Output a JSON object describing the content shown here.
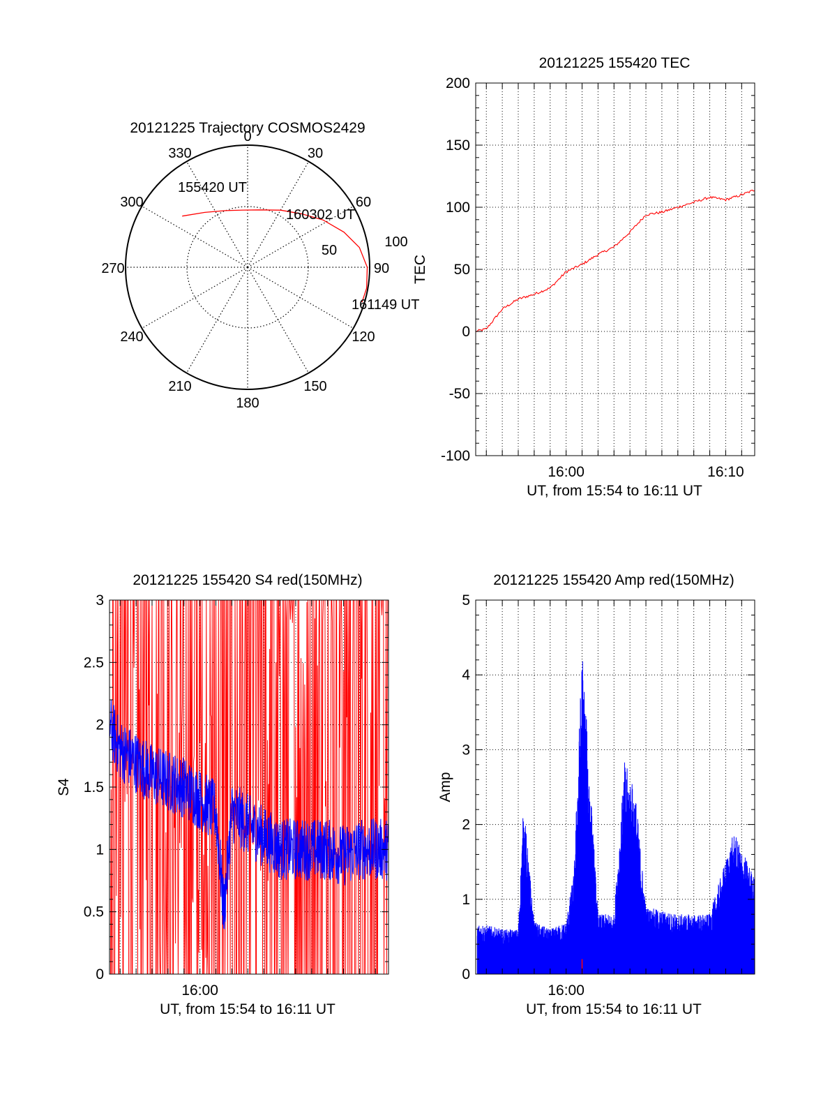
{
  "chart_data": [
    {
      "type": "polar",
      "title": "20121225 Trajectory COSMOS2429",
      "azimuth_labels": [
        "0",
        "30",
        "60",
        "90",
        "120",
        "150",
        "180",
        "210",
        "240",
        "270",
        "300",
        "330"
      ],
      "ring_labels": [
        "100",
        "50"
      ],
      "trajectory": {
        "color": "#ff0000",
        "points": [
          {
            "az": 308,
            "r": 68
          },
          {
            "az": 322,
            "r": 57
          },
          {
            "az": 338,
            "r": 50
          },
          {
            "az": 355,
            "r": 47
          },
          {
            "az": 12,
            "r": 48
          },
          {
            "az": 30,
            "r": 54
          },
          {
            "az": 45,
            "r": 62
          },
          {
            "az": 58,
            "r": 73
          },
          {
            "az": 70,
            "r": 84
          },
          {
            "az": 80,
            "r": 93
          },
          {
            "az": 90,
            "r": 98
          },
          {
            "az": 100,
            "r": 99
          },
          {
            "az": 107,
            "r": 98
          }
        ]
      },
      "annotations": [
        "155420 UT",
        "160302 UT",
        "161149 UT"
      ]
    },
    {
      "type": "line",
      "title": "20121225 155420 TEC",
      "xlabel": "UT, from 15:54 to 16:11 UT",
      "ylabel": "TEC",
      "xlim": [
        "15:54:20",
        "16:11:49"
      ],
      "ylim": [
        -100,
        200
      ],
      "yticks": [
        "200",
        "150",
        "100",
        "50",
        "0",
        "-50",
        "-100"
      ],
      "xticks": [
        "16:00",
        "16:10"
      ],
      "grid": true,
      "series": [
        {
          "color": "#ff0000",
          "x": [
            "15:54:20",
            "15:55:00",
            "15:56:00",
            "15:57:00",
            "15:58:00",
            "15:59:00",
            "16:00:00",
            "16:01:00",
            "16:02:00",
            "16:03:00",
            "16:04:00",
            "16:05:00",
            "16:06:00",
            "16:07:00",
            "16:08:00",
            "16:09:00",
            "16:10:00",
            "16:11:00",
            "16:11:49"
          ],
          "values": [
            0,
            2,
            18,
            26,
            30,
            35,
            48,
            54,
            62,
            68,
            80,
            94,
            96,
            100,
            104,
            108,
            106,
            110,
            114
          ]
        }
      ]
    },
    {
      "type": "line",
      "title": "20121225 155420 S4 red(150MHz)",
      "xlabel": "UT, from 15:54 to 16:11 UT",
      "ylabel": "S4",
      "xlim": [
        "15:54:20",
        "16:11:49"
      ],
      "ylim": [
        0,
        3
      ],
      "yticks": [
        "3",
        "2.5",
        "2",
        "1.5",
        "1",
        "0.5",
        "0"
      ],
      "xticks": [
        "16:00"
      ],
      "grid": true,
      "series": [
        {
          "color": "#ff0000",
          "x": [
            "15:54:20",
            "15:56:00",
            "15:58:00",
            "16:00:00",
            "16:02:00",
            "16:04:00",
            "16:06:00",
            "16:08:00",
            "16:10:00",
            "16:11:49"
          ],
          "values": [
            1.5,
            1.4,
            1.3,
            1.2,
            1.3,
            1.6,
            2.0,
            2.4,
            2.6,
            1.8
          ]
        },
        {
          "color": "#0000ff",
          "x": [
            "15:54:20",
            "15:55:00",
            "15:56:00",
            "15:57:00",
            "15:58:00",
            "15:59:00",
            "16:00:00",
            "16:01:00",
            "16:01:30",
            "16:02:00",
            "16:03:00",
            "16:04:00",
            "16:05:00",
            "16:06:00",
            "16:07:00",
            "16:08:00",
            "16:09:00",
            "16:10:00",
            "16:11:49"
          ],
          "values": [
            2.0,
            1.8,
            1.7,
            1.6,
            1.55,
            1.5,
            1.4,
            1.3,
            0.5,
            1.3,
            1.2,
            1.1,
            1.0,
            1.0,
            1.0,
            1.0,
            0.95,
            1.0,
            1.0
          ]
        }
      ]
    },
    {
      "type": "line",
      "title": "20121225 155420 Amp red(150MHz)",
      "xlabel": "UT, from 15:54 to 16:11 UT",
      "ylabel": "Amp",
      "xlim": [
        "15:54:20",
        "16:11:49"
      ],
      "ylim": [
        0,
        5
      ],
      "yticks": [
        "5",
        "4",
        "3",
        "2",
        "1",
        "0"
      ],
      "xticks": [
        "16:00"
      ],
      "grid": true,
      "series": [
        {
          "color": "#0000ff",
          "x": [
            "15:54:20",
            "15:56:00",
            "15:57:00",
            "15:57:20",
            "15:58:00",
            "15:59:00",
            "16:00:00",
            "16:00:30",
            "16:01:00",
            "16:02:00",
            "16:03:00",
            "16:03:40",
            "16:04:20",
            "16:05:00",
            "16:07:00",
            "16:09:00",
            "16:10:30",
            "16:11:49"
          ],
          "values": [
            0.7,
            0.6,
            0.6,
            2.3,
            0.7,
            0.6,
            0.7,
            1.4,
            4.4,
            0.8,
            0.8,
            2.85,
            2.45,
            0.9,
            0.8,
            0.8,
            1.9,
            1.3
          ]
        },
        {
          "color": "#ff0000",
          "x": [
            "16:01:00"
          ],
          "values": [
            0.2
          ]
        }
      ]
    }
  ]
}
